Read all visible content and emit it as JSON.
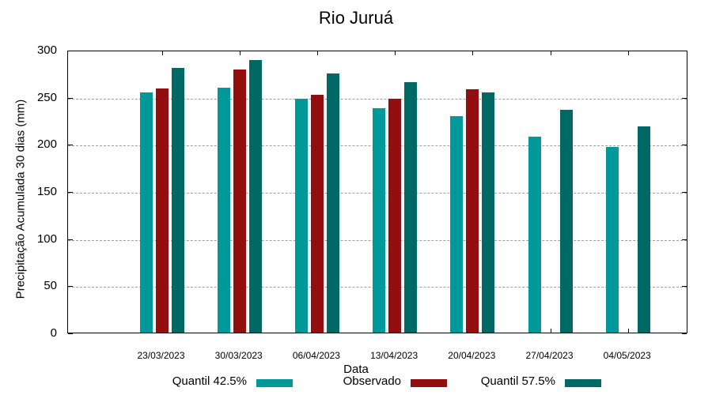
{
  "chart_data": {
    "type": "bar",
    "title": "Rio Juruá",
    "xlabel": "Data",
    "ylabel": "Precipitação Acumulada 30 dias (mm)",
    "ylim": [
      0,
      300
    ],
    "yticks": [
      0,
      50,
      100,
      150,
      200,
      250,
      300
    ],
    "grid": true,
    "legend_position": "bottom",
    "categories": [
      "23/03/2023",
      "30/03/2023",
      "06/04/2023",
      "13/04/2023",
      "20/04/2023",
      "27/04/2023",
      "04/05/2023"
    ],
    "series": [
      {
        "name": "Quantil 42.5%",
        "color": "#009999",
        "values": [
          255,
          260,
          248,
          238,
          230,
          208,
          197
        ]
      },
      {
        "name": "Observado",
        "color": "#930e0e",
        "values": [
          259,
          279,
          252,
          248,
          258,
          null,
          null
        ]
      },
      {
        "name": "Quantil 57.5%",
        "color": "#006966",
        "values": [
          281,
          289,
          275,
          266,
          255,
          236,
          219
        ]
      }
    ]
  },
  "labels": {
    "title": "Rio Juruá",
    "xlabel": "Data",
    "ylabel": "Precipitação Acumulada 30 dias (mm)",
    "yticks": [
      "0",
      "50",
      "100",
      "150",
      "200",
      "250",
      "300"
    ],
    "xticks": [
      "23/03/2023",
      "30/03/2023",
      "06/04/2023",
      "13/04/2023",
      "20/04/2023",
      "27/04/2023",
      "04/05/2023"
    ],
    "legend": [
      "Quantil 42.5%",
      "Observado",
      "Quantil 57.5%"
    ]
  }
}
